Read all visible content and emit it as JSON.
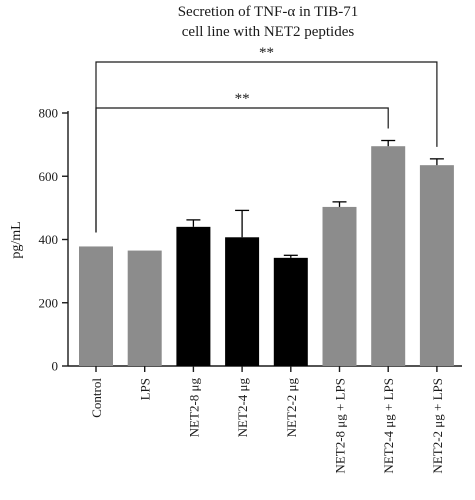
{
  "chart_data": {
    "type": "bar",
    "title_lines": [
      "Secretion of TNF-α in TIB-71",
      "cell line with NET2 peptides"
    ],
    "ylabel": "pg/mL",
    "xlabel": "",
    "ylim": [
      0,
      800
    ],
    "yticks": [
      0,
      200,
      400,
      600,
      800
    ],
    "categories": [
      "Control",
      "LPS",
      "NET2-8 μg",
      "NET2-4 μg",
      "NET2-2 μg",
      "NET2-8 μg + LPS",
      "NET2-4 μg + LPS",
      "NET2-2 μg + LPS"
    ],
    "values": [
      378,
      365,
      440,
      407,
      342,
      503,
      695,
      635
    ],
    "errors": [
      0,
      0,
      22,
      85,
      8,
      16,
      18,
      20
    ],
    "bar_colors": [
      "#8c8c8c",
      "#8c8c8c",
      "#000000",
      "#000000",
      "#000000",
      "#8c8c8c",
      "#8c8c8c",
      "#8c8c8c"
    ],
    "significance": [
      {
        "from": 0,
        "to": 6,
        "label": "**"
      },
      {
        "from": 0,
        "to": 7,
        "label": "**"
      }
    ],
    "grid": false
  }
}
